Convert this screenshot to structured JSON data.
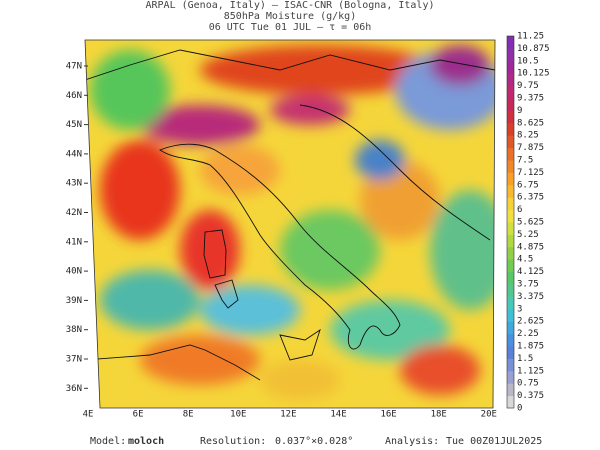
{
  "header": {
    "lines": [
      "ARPAL (Genoa, Italy)  –  ISAC-CNR (Bologna, Italy)",
      "850hPa Moisture (g/kg)",
      "06 UTC Tue 01 JUL  –  τ = 06h"
    ]
  },
  "lat_labels": [
    "47N",
    "46N",
    "45N",
    "44N",
    "43N",
    "42N",
    "41N",
    "40N",
    "39N",
    "38N",
    "37N",
    "36N"
  ],
  "lon_labels": [
    "4E",
    "6E",
    "8E",
    "10E",
    "12E",
    "14E",
    "16E",
    "18E",
    "20E"
  ],
  "colorbar": {
    "labels": [
      0,
      0.375,
      0.75,
      1.125,
      1.5,
      1.875,
      2.25,
      2.625,
      3,
      3.375,
      3.75,
      4.125,
      4.5,
      4.875,
      5.25,
      5.625,
      6,
      6.375,
      6.75,
      7.125,
      7.5,
      7.875,
      8.25,
      8.625,
      9,
      9.375,
      9.75,
      10.125,
      10.5,
      10.875,
      11.25
    ]
  },
  "footer": {
    "model_label": "Model:",
    "model": "moloch",
    "resolution_label": "Resolution:",
    "resolution": "0.037°×0.028°",
    "analysis_label": "Analysis:",
    "analysis": "Tue 00Z01JUL2025"
  }
}
